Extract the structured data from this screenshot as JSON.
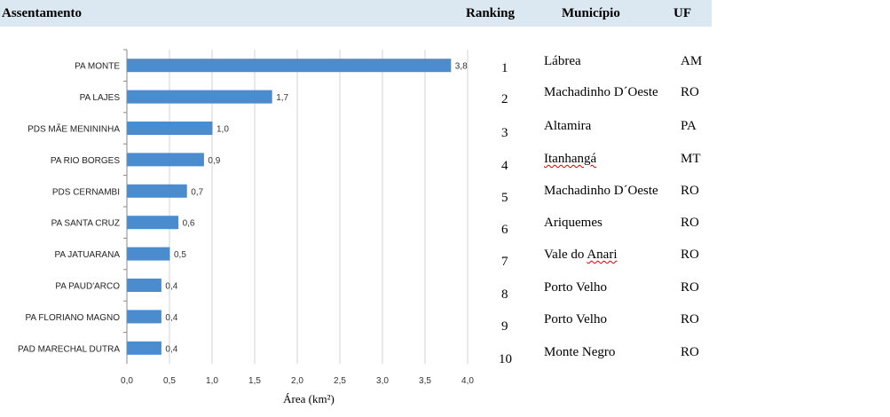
{
  "header": {
    "assentamento": "Assentamento",
    "ranking": "Ranking",
    "municipio": "Município",
    "uf": "UF"
  },
  "chart_data": {
    "type": "bar",
    "orientation": "horizontal",
    "categories": [
      "PA MONTE",
      "PA LAJES",
      "PDS MÃE MENININHA",
      "PA RIO BORGES",
      "PDS CERNAMBI",
      "PA SANTA CRUZ",
      "PA JATUARANA",
      "PA PAUD'ARCO",
      "PA FLORIANO MAGNO",
      "PAD MARECHAL DUTRA"
    ],
    "values": [
      3.8,
      1.7,
      1.0,
      0.9,
      0.7,
      0.6,
      0.5,
      0.4,
      0.4,
      0.4
    ],
    "value_labels": [
      "3,8",
      "1,7",
      "1,0",
      "0,9",
      "0,7",
      "0,6",
      "0,5",
      "0,4",
      "0,4",
      "0,4"
    ],
    "xlim": [
      0,
      4.0
    ],
    "xticks": [
      "0,0",
      "0,5",
      "1,0",
      "1,5",
      "2,0",
      "2,5",
      "3,0",
      "3,5",
      "4,0"
    ],
    "xlabel": "Área (km²)",
    "ylabel": "",
    "title": "",
    "grid": true,
    "bar_color": "#4a8ccd"
  },
  "ranking_table": [
    {
      "rank": "1",
      "municipio": "Lábrea",
      "uf": "AM"
    },
    {
      "rank": "2",
      "municipio": "Machadinho D´Oeste",
      "uf": "RO"
    },
    {
      "rank": "3",
      "municipio": "Altamira",
      "uf": "PA"
    },
    {
      "rank": "4",
      "municipio": "Itanhangá",
      "uf": "MT"
    },
    {
      "rank": "5",
      "municipio": "Machadinho D´Oeste",
      "uf": "RO"
    },
    {
      "rank": "6",
      "municipio": "Ariquemes",
      "uf": "RO"
    },
    {
      "rank": "7",
      "municipio": "Vale do Anari",
      "uf": "RO"
    },
    {
      "rank": "8",
      "municipio": "Porto Velho",
      "uf": "RO"
    },
    {
      "rank": "9",
      "municipio": "Porto Velho",
      "uf": "RO"
    },
    {
      "rank": "10",
      "municipio": "Monte Negro",
      "uf": "RO"
    }
  ]
}
